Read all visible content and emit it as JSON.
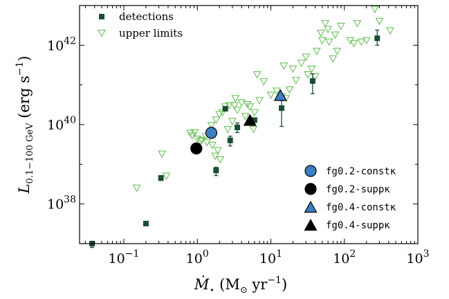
{
  "chart_data": {
    "type": "scatter",
    "xscale": "log",
    "yscale": "log",
    "xlim": [
      0.025,
      1000
    ],
    "ylim": [
      1e+37,
      1e+43
    ],
    "xticks": [
      {
        "value": 0.1,
        "base": "10",
        "exp": "−1"
      },
      {
        "value": 1,
        "base": "10",
        "exp": "0"
      },
      {
        "value": 10,
        "base": "10",
        "exp": "1"
      },
      {
        "value": 100,
        "base": "10",
        "exp": "2"
      },
      {
        "value": 1000,
        "base": "10",
        "exp": "3"
      }
    ],
    "yticks": [
      {
        "value": 1e+38,
        "base": "10",
        "exp": "38"
      },
      {
        "value": 1e+40,
        "base": "10",
        "exp": "40"
      },
      {
        "value": 1e+42,
        "base": "10",
        "exp": "42"
      }
    ],
    "xlabel": {
      "main": "Ṁ",
      "sub": "⋆",
      "unit": " (M",
      "unit_sub": "⊙",
      "unit_rest": " yr",
      "unit_exp": "−1",
      "close": ")"
    },
    "ylabel": {
      "main": "L",
      "sub": "0.1−100 GeV",
      "unit": " (erg s",
      "unit_exp": "−1",
      "close": ")"
    },
    "legend_top": [
      {
        "label": "detections",
        "marker": "square",
        "color": "#1a4d32"
      },
      {
        "label": "upper limits",
        "marker": "triangle-down-open",
        "color": "#6abf5c"
      }
    ],
    "legend_bottom": [
      {
        "label": "fg0.2-constκ",
        "marker": "circle",
        "color": "#3b7fc4"
      },
      {
        "label": "fg0.2-suppκ",
        "marker": "circle",
        "color": "#000000"
      },
      {
        "label": "fg0.4-constκ",
        "marker": "triangle-up",
        "color": "#3b7fc4"
      },
      {
        "label": "fg0.4-suppκ",
        "marker": "triangle-up",
        "color": "#000000"
      }
    ],
    "series": [
      {
        "name": "detections",
        "marker": "square",
        "color": "#1a4d32",
        "points": [
          {
            "x": 0.037,
            "y": 1e+37,
            "ylo": 8e+36,
            "yhi": 1.15e+37
          },
          {
            "x": 0.2,
            "y": 3.2e+37
          },
          {
            "x": 0.32,
            "y": 4.5e+38,
            "ylo": 3.9e+38,
            "yhi": 5.2e+38
          },
          {
            "x": 1.8,
            "y": 7e+38,
            "ylo": 5.2e+38,
            "yhi": 8.4e+38
          },
          {
            "x": 2.4,
            "y": 2.5e+40
          },
          {
            "x": 2.8,
            "y": 4e+39,
            "ylo": 2.9e+39,
            "yhi": 5.1e+39
          },
          {
            "x": 3.5,
            "y": 8.5e+39,
            "ylo": 6.3e+39,
            "yhi": 1.1e+40
          },
          {
            "x": 6.0,
            "y": 1.3e+40
          },
          {
            "x": 14.0,
            "y": 2.6e+40,
            "ylo": 9e+39,
            "yhi": 4e+40
          },
          {
            "x": 37.0,
            "y": 1.25e+41,
            "ylo": 6e+40,
            "yhi": 1.9e+41
          },
          {
            "x": 280.0,
            "y": 1.5e+42,
            "ylo": 1e+42,
            "yhi": 2.4e+42
          }
        ]
      },
      {
        "name": "upper limits",
        "marker": "triangle-down-open",
        "color": "#6abf5c",
        "points": [
          {
            "x": 0.15,
            "y": 2.5e+38
          },
          {
            "x": 0.33,
            "y": 1.8e+39
          },
          {
            "x": 0.38,
            "y": 5e+38
          },
          {
            "x": 0.8,
            "y": 6e+39
          },
          {
            "x": 0.85,
            "y": 5.2e+39
          },
          {
            "x": 0.92,
            "y": 6.2e+39
          },
          {
            "x": 1.0,
            "y": 4.3e+39
          },
          {
            "x": 1.1,
            "y": 3.8e+39
          },
          {
            "x": 1.15,
            "y": 4e+39
          },
          {
            "x": 1.3,
            "y": 5e+39
          },
          {
            "x": 1.35,
            "y": 3.5e+39
          },
          {
            "x": 1.55,
            "y": 9.5e+39
          },
          {
            "x": 1.6,
            "y": 3e+39
          },
          {
            "x": 1.75,
            "y": 1.6e+39
          },
          {
            "x": 1.8,
            "y": 1.3e+40
          },
          {
            "x": 1.9,
            "y": 2.2e+39
          },
          {
            "x": 2.0,
            "y": 1.8e+40
          },
          {
            "x": 2.05,
            "y": 1.3e+39
          },
          {
            "x": 2.2,
            "y": 2e+40
          },
          {
            "x": 2.4,
            "y": 2.8e+40
          },
          {
            "x": 2.6,
            "y": 7.5e+39
          },
          {
            "x": 2.7,
            "y": 3e+40
          },
          {
            "x": 3.0,
            "y": 1.2e+40
          },
          {
            "x": 3.2,
            "y": 3e+40
          },
          {
            "x": 3.3,
            "y": 4.5e+40
          },
          {
            "x": 3.5,
            "y": 2.3e+40
          },
          {
            "x": 4.0,
            "y": 3.5e+40
          },
          {
            "x": 4.5,
            "y": 1.6e+40
          },
          {
            "x": 4.8,
            "y": 3.2e+40
          },
          {
            "x": 5.2,
            "y": 2.8e+40
          },
          {
            "x": 5.8,
            "y": 7.5e+39
          },
          {
            "x": 6.0,
            "y": 2e+40
          },
          {
            "x": 6.5,
            "y": 1.8e+41
          },
          {
            "x": 7.0,
            "y": 4e+40
          },
          {
            "x": 8.0,
            "y": 1.2e+41
          },
          {
            "x": 10.0,
            "y": 5.5e+40
          },
          {
            "x": 12.0,
            "y": 7e+40
          },
          {
            "x": 14.0,
            "y": 5e+40
          },
          {
            "x": 15.0,
            "y": 3e+41
          },
          {
            "x": 16.0,
            "y": 4.5e+40
          },
          {
            "x": 18.0,
            "y": 7.5e+40
          },
          {
            "x": 20.0,
            "y": 2.5e+41
          },
          {
            "x": 22.0,
            "y": 1.3e+41
          },
          {
            "x": 26.0,
            "y": 3.5e+41
          },
          {
            "x": 30.0,
            "y": 5e+41
          },
          {
            "x": 32.0,
            "y": 1.8e+41
          },
          {
            "x": 36.0,
            "y": 2.5e+41
          },
          {
            "x": 40.0,
            "y": 1.6e+41
          },
          {
            "x": 42.0,
            "y": 7e+41
          },
          {
            "x": 48.0,
            "y": 2e+42
          },
          {
            "x": 50.0,
            "y": 1.3e+42
          },
          {
            "x": 55.0,
            "y": 3.5e+42
          },
          {
            "x": 60.0,
            "y": 2.5e+42
          },
          {
            "x": 62.0,
            "y": 1.2e+42
          },
          {
            "x": 70.0,
            "y": 4.5e+41
          },
          {
            "x": 75.0,
            "y": 1.8e+42
          },
          {
            "x": 80.0,
            "y": 7e+41
          },
          {
            "x": 90.0,
            "y": 3e+42
          },
          {
            "x": 120.0,
            "y": 1.3e+42
          },
          {
            "x": 135.0,
            "y": 1.1e+42
          },
          {
            "x": 150.0,
            "y": 3.5e+42
          },
          {
            "x": 170.0,
            "y": 1.2e+42
          },
          {
            "x": 200.0,
            "y": 1.3e+42
          },
          {
            "x": 260.0,
            "y": 8e+42
          },
          {
            "x": 300.0,
            "y": 4e+42
          },
          {
            "x": 420.0,
            "y": 2.3e+42
          }
        ]
      },
      {
        "name": "fg0.2-constκ",
        "marker": "circle",
        "color": "#3b7fc4",
        "points": [
          {
            "x": 1.55,
            "y": 6.2e+39
          }
        ]
      },
      {
        "name": "fg0.2-suppκ",
        "marker": "circle",
        "color": "#000000",
        "points": [
          {
            "x": 0.97,
            "y": 2.5e+39
          }
        ]
      },
      {
        "name": "fg0.4-constκ",
        "marker": "triangle-up",
        "color": "#3b7fc4",
        "points": [
          {
            "x": 13.5,
            "y": 5.5e+40
          }
        ]
      },
      {
        "name": "fg0.4-suppκ",
        "marker": "triangle-up",
        "color": "#000000",
        "points": [
          {
            "x": 5.2,
            "y": 1.3e+40
          }
        ]
      }
    ]
  }
}
